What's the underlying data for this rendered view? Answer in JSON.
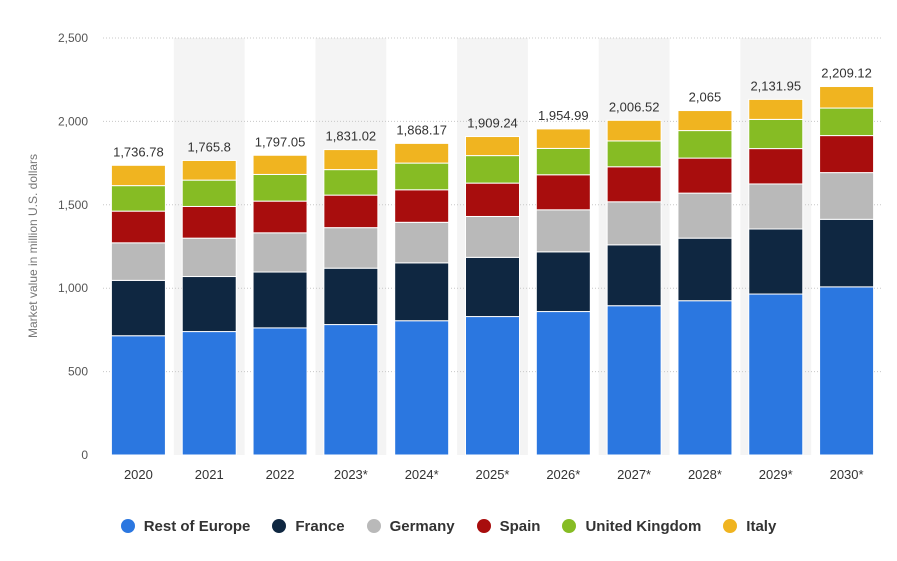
{
  "chart_data": {
    "type": "bar",
    "stacked": true,
    "title": "",
    "xlabel": "",
    "ylabel": "Market value in million U.S. dollars",
    "ylim": [
      0,
      2500
    ],
    "yticks": [
      0,
      500,
      1000,
      1500,
      2000,
      2500
    ],
    "ytick_labels": [
      "0",
      "500",
      "1,000",
      "1,500",
      "2,000",
      "2,500"
    ],
    "grid": true,
    "legend_position": "bottom",
    "categories": [
      "2020",
      "2021",
      "2022",
      "2023*",
      "2024*",
      "2025*",
      "2026*",
      "2027*",
      "2028*",
      "2029*",
      "2030*"
    ],
    "totals": [
      1736.78,
      1765.8,
      1797.05,
      1831.02,
      1868.17,
      1909.24,
      1954.99,
      2006.52,
      2065,
      2131.95,
      2209.12
    ],
    "total_labels": [
      "1,736.78",
      "1,765.8",
      "1,797.05",
      "1,831.02",
      "1,868.17",
      "1,909.24",
      "1,954.99",
      "2,006.52",
      "2,065",
      "2,131.95",
      "2,209.12"
    ],
    "series": [
      {
        "name": "Rest of Europe",
        "color": "#2b77e0",
        "values": [
          715,
          740,
          762,
          782,
          805,
          830,
          860,
          895,
          925,
          965,
          1008
        ]
      },
      {
        "name": "France",
        "color": "#0f2741",
        "values": [
          332,
          330,
          335,
          338,
          347,
          355,
          358,
          365,
          375,
          390,
          405
        ]
      },
      {
        "name": "Germany",
        "color": "#b9b9b9",
        "values": [
          225,
          230,
          235,
          243,
          243,
          245,
          252,
          258,
          270,
          270,
          280
        ]
      },
      {
        "name": "Spain",
        "color": "#a80d0d",
        "values": [
          190,
          190,
          190,
          195,
          195,
          200,
          210,
          210,
          210,
          212,
          222
        ]
      },
      {
        "name": "United Kingdom",
        "color": "#86bc24",
        "values": [
          153,
          158,
          160,
          153,
          160,
          165,
          158,
          155,
          165,
          175,
          165
        ]
      },
      {
        "name": "Italy",
        "color": "#f0b420",
        "values": [
          121.78,
          117.8,
          115.05,
          120.02,
          118.17,
          114.24,
          116.99,
          123.52,
          120,
          119.95,
          129.12
        ]
      }
    ]
  }
}
